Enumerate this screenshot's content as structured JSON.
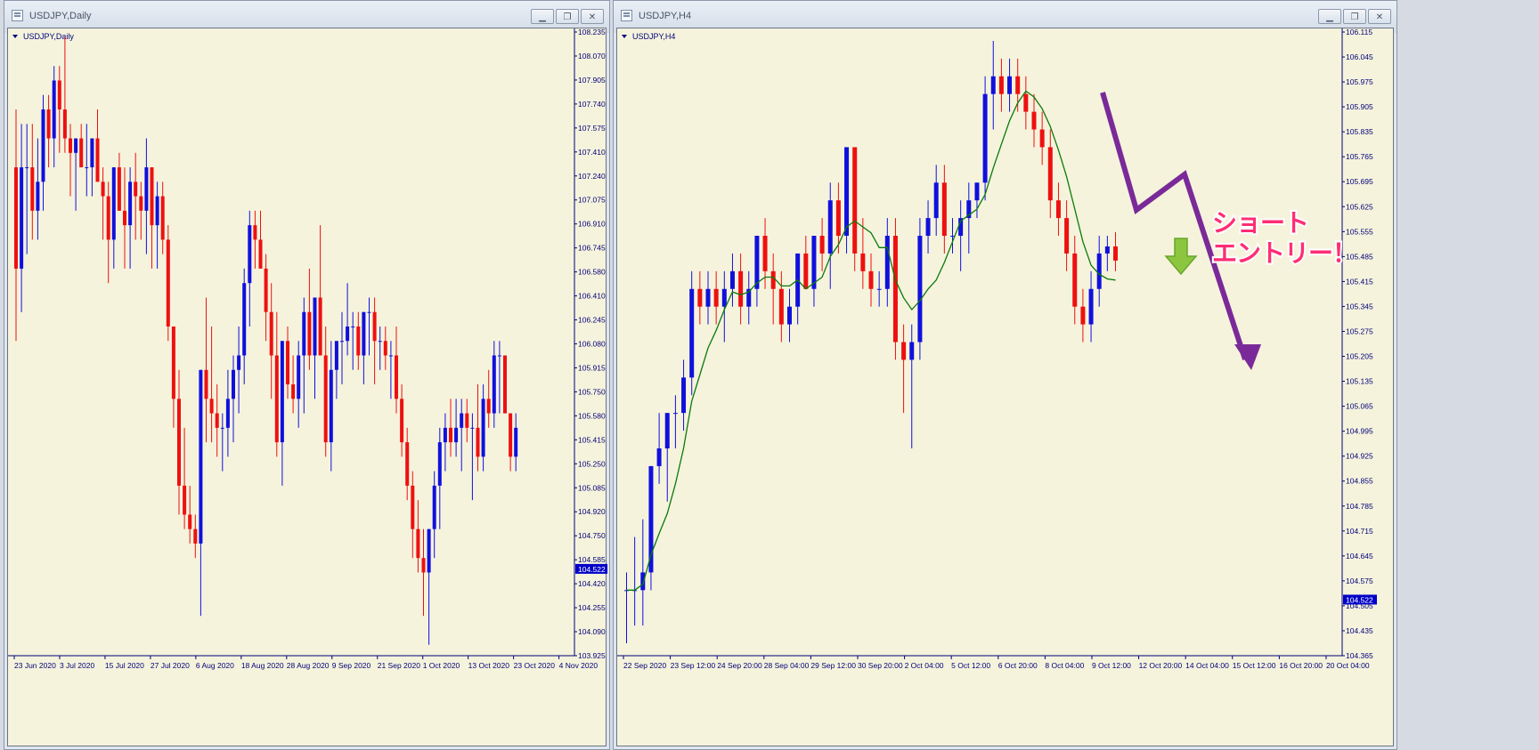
{
  "left_window": {
    "title": "USDJPY,Daily",
    "chart_label": "USDJPY,Daily",
    "buttons": [
      "▁",
      "❐",
      "✕"
    ]
  },
  "right_window": {
    "title": "USDJPY,H4",
    "chart_label": "USDJPY,H4",
    "buttons": [
      "▁",
      "❐",
      "✕"
    ]
  },
  "colors": {
    "chart_bg": "#f5f3dc",
    "bull": "#1010dd",
    "bear": "#ee1010",
    "axis_text": "#00007a",
    "ma_line": "#0a7a0a",
    "arrow": "#7a2a98",
    "callout": "#ff2d73",
    "down_arrow": "#7fbf3a",
    "price_tag_bg": "#0000c8"
  },
  "icons": [
    "window-icon",
    "minimize-icon",
    "restore-icon",
    "close-icon",
    "chart-dropdown-icon",
    "down-arrow-icon"
  ],
  "annotation": {
    "line1": "ショート",
    "line2": "エントリー！"
  },
  "chart_data": [
    {
      "type": "candlestick",
      "title": "USDJPY,Daily",
      "current_price": "104.522",
      "ylim": [
        103.925,
        108.235
      ],
      "y_ticks": [
        "108.235",
        "108.070",
        "107.905",
        "107.740",
        "107.575",
        "107.410",
        "107.240",
        "107.075",
        "106.910",
        "106.745",
        "106.580",
        "106.410",
        "106.245",
        "106.080",
        "105.915",
        "105.750",
        "105.580",
        "105.415",
        "105.250",
        "105.085",
        "104.920",
        "104.750",
        "104.585",
        "104.420",
        "104.255",
        "104.090",
        "103.925"
      ],
      "x_ticks": [
        "23 Jun 2020",
        "3 Jul 2020",
        "15 Jul 2020",
        "27 Jul 2020",
        "6 Aug 2020",
        "18 Aug 2020",
        "28 Aug 2020",
        "9 Sep 2020",
        "21 Sep 2020",
        "1 Oct 2020",
        "13 Oct 2020",
        "23 Oct 2020",
        "4 Nov 2020"
      ],
      "candles": [
        [
          107.3,
          107.7,
          106.1,
          106.6
        ],
        [
          106.6,
          107.6,
          106.3,
          107.3
        ],
        [
          107.3,
          107.6,
          106.7,
          107.3
        ],
        [
          107.3,
          107.6,
          106.8,
          107.0
        ],
        [
          107.0,
          107.5,
          106.8,
          107.2
        ],
        [
          107.2,
          107.8,
          107.0,
          107.7
        ],
        [
          107.7,
          107.8,
          107.3,
          107.5
        ],
        [
          107.5,
          108.0,
          107.3,
          107.9
        ],
        [
          107.9,
          108.0,
          107.4,
          107.7
        ],
        [
          107.7,
          108.2,
          107.4,
          107.5
        ],
        [
          107.5,
          107.6,
          107.1,
          107.4
        ],
        [
          107.4,
          107.5,
          107.0,
          107.5
        ],
        [
          107.5,
          107.6,
          107.3,
          107.3
        ],
        [
          107.3,
          107.6,
          107.1,
          107.3
        ],
        [
          107.3,
          107.5,
          107.1,
          107.5
        ],
        [
          107.5,
          107.7,
          107.2,
          107.2
        ],
        [
          107.2,
          107.3,
          106.8,
          107.1
        ],
        [
          107.1,
          107.2,
          106.5,
          106.8
        ],
        [
          106.8,
          107.3,
          106.6,
          107.3
        ],
        [
          107.3,
          107.4,
          107.0,
          107.0
        ],
        [
          107.0,
          107.3,
          106.6,
          106.9
        ],
        [
          106.9,
          107.3,
          106.6,
          107.2
        ],
        [
          107.2,
          107.4,
          106.8,
          107.1
        ],
        [
          107.1,
          107.2,
          106.8,
          107.0
        ],
        [
          107.0,
          107.5,
          106.7,
          107.3
        ],
        [
          107.3,
          107.3,
          106.6,
          106.9
        ],
        [
          106.9,
          107.2,
          106.6,
          107.1
        ],
        [
          107.1,
          107.2,
          106.7,
          106.8
        ],
        [
          106.8,
          106.9,
          106.1,
          106.2
        ],
        [
          106.2,
          106.2,
          105.5,
          105.7
        ],
        [
          105.7,
          105.9,
          104.9,
          105.1
        ],
        [
          105.1,
          105.5,
          104.8,
          104.9
        ],
        [
          104.9,
          105.1,
          104.7,
          104.8
        ],
        [
          104.8,
          104.9,
          104.6,
          104.7
        ],
        [
          104.7,
          105.9,
          104.2,
          105.9
        ],
        [
          105.9,
          106.4,
          105.4,
          105.7
        ],
        [
          105.7,
          106.2,
          105.4,
          105.6
        ],
        [
          105.6,
          105.8,
          105.3,
          105.5
        ],
        [
          105.5,
          105.6,
          105.2,
          105.5
        ],
        [
          105.5,
          105.9,
          105.3,
          105.7
        ],
        [
          105.7,
          106.0,
          105.4,
          105.9
        ],
        [
          105.9,
          106.2,
          105.6,
          106.0
        ],
        [
          106.0,
          106.6,
          105.8,
          106.5
        ],
        [
          106.5,
          107.0,
          106.2,
          106.9
        ],
        [
          106.9,
          107.0,
          106.6,
          106.8
        ],
        [
          106.8,
          107.0,
          106.6,
          106.6
        ],
        [
          106.6,
          106.7,
          106.1,
          106.3
        ],
        [
          106.3,
          106.5,
          105.7,
          106.0
        ],
        [
          106.0,
          106.3,
          105.3,
          105.4
        ],
        [
          105.4,
          106.1,
          105.1,
          106.1
        ],
        [
          106.1,
          106.2,
          105.7,
          105.8
        ],
        [
          105.8,
          106.0,
          105.6,
          105.7
        ],
        [
          105.7,
          106.1,
          105.5,
          106.0
        ],
        [
          106.0,
          106.4,
          105.6,
          106.3
        ],
        [
          106.3,
          106.6,
          105.9,
          106.0
        ],
        [
          106.0,
          106.4,
          105.7,
          106.4
        ],
        [
          106.4,
          106.9,
          106.0,
          106.0
        ],
        [
          106.0,
          106.2,
          105.3,
          105.4
        ],
        [
          105.4,
          106.1,
          105.2,
          105.9
        ],
        [
          105.9,
          106.1,
          105.7,
          106.1
        ],
        [
          106.1,
          106.3,
          105.8,
          106.1
        ],
        [
          106.1,
          106.5,
          106.0,
          106.2
        ],
        [
          106.2,
          106.3,
          105.9,
          106.2
        ],
        [
          106.2,
          106.3,
          105.9,
          106.0
        ],
        [
          106.0,
          106.3,
          105.8,
          106.3
        ],
        [
          106.3,
          106.4,
          106.0,
          106.3
        ],
        [
          106.3,
          106.4,
          105.8,
          106.1
        ],
        [
          106.1,
          106.2,
          105.9,
          106.1
        ],
        [
          106.1,
          106.2,
          105.9,
          106.0
        ],
        [
          106.0,
          106.1,
          105.7,
          106.0
        ],
        [
          106.0,
          106.2,
          105.6,
          105.7
        ],
        [
          105.7,
          105.8,
          105.3,
          105.4
        ],
        [
          105.4,
          105.5,
          105.0,
          105.1
        ],
        [
          105.1,
          105.2,
          104.6,
          104.8
        ],
        [
          104.8,
          105.0,
          104.5,
          104.6
        ],
        [
          104.6,
          104.8,
          104.2,
          104.5
        ],
        [
          104.5,
          104.8,
          104.0,
          104.8
        ],
        [
          104.8,
          105.2,
          104.6,
          105.1
        ],
        [
          105.1,
          105.5,
          104.8,
          105.4
        ],
        [
          105.4,
          105.6,
          105.2,
          105.5
        ],
        [
          105.5,
          105.7,
          105.3,
          105.4
        ],
        [
          105.4,
          105.7,
          105.3,
          105.5
        ],
        [
          105.5,
          105.7,
          105.2,
          105.6
        ],
        [
          105.6,
          105.7,
          105.4,
          105.5
        ],
        [
          105.5,
          105.6,
          105.0,
          105.5
        ],
        [
          105.5,
          105.8,
          105.2,
          105.3
        ],
        [
          105.3,
          105.8,
          105.2,
          105.7
        ],
        [
          105.7,
          105.9,
          105.5,
          105.6
        ],
        [
          105.6,
          106.1,
          105.5,
          106.0
        ],
        [
          106.0,
          106.1,
          105.6,
          106.0
        ],
        [
          106.0,
          106.0,
          105.6,
          105.6
        ],
        [
          105.6,
          105.6,
          105.2,
          105.3
        ],
        [
          105.3,
          105.6,
          105.2,
          105.5
        ]
      ]
    },
    {
      "type": "candlestick",
      "title": "USDJPY,H4",
      "current_price": "104.522",
      "ylim": [
        104.365,
        106.125
      ],
      "y_ticks": [
        "106.115",
        "106.045",
        "105.975",
        "105.905",
        "105.835",
        "105.765",
        "105.695",
        "105.625",
        "105.555",
        "105.485",
        "105.415",
        "105.345",
        "105.275",
        "105.205",
        "105.135",
        "105.065",
        "104.995",
        "104.925",
        "104.855",
        "104.785",
        "104.715",
        "104.645",
        "104.575",
        "104.505",
        "104.435",
        "104.365"
      ],
      "x_ticks": [
        "22 Sep 2020",
        "23 Sep 12:00",
        "24 Sep 20:00",
        "28 Sep 04:00",
        "29 Sep 12:00",
        "30 Sep 20:00",
        "2 Oct 04:00",
        "5 Oct 12:00",
        "6 Oct 20:00",
        "8 Oct 04:00",
        "9 Oct 12:00",
        "12 Oct 20:00",
        "14 Oct 04:00",
        "15 Oct 12:00",
        "16 Oct 20:00",
        "20 Oct 04:00"
      ],
      "candles": [
        [
          104.55,
          104.6,
          104.4,
          104.55
        ],
        [
          104.55,
          104.7,
          104.45,
          104.55
        ],
        [
          104.55,
          104.75,
          104.45,
          104.6
        ],
        [
          104.6,
          104.9,
          104.55,
          104.9
        ],
        [
          104.9,
          105.05,
          104.85,
          104.95
        ],
        [
          104.95,
          105.05,
          104.8,
          105.05
        ],
        [
          105.05,
          105.1,
          104.95,
          105.05
        ],
        [
          105.05,
          105.2,
          105.0,
          105.15
        ],
        [
          105.15,
          105.45,
          105.1,
          105.4
        ],
        [
          105.4,
          105.45,
          105.3,
          105.35
        ],
        [
          105.35,
          105.45,
          105.3,
          105.4
        ],
        [
          105.4,
          105.45,
          105.3,
          105.35
        ],
        [
          105.35,
          105.45,
          105.25,
          105.4
        ],
        [
          105.4,
          105.5,
          105.35,
          105.45
        ],
        [
          105.45,
          105.5,
          105.3,
          105.35
        ],
        [
          105.35,
          105.45,
          105.3,
          105.4
        ],
        [
          105.4,
          105.55,
          105.35,
          105.55
        ],
        [
          105.55,
          105.6,
          105.4,
          105.45
        ],
        [
          105.45,
          105.5,
          105.3,
          105.4
        ],
        [
          105.4,
          105.45,
          105.25,
          105.3
        ],
        [
          105.3,
          105.4,
          105.25,
          105.35
        ],
        [
          105.35,
          105.5,
          105.3,
          105.5
        ],
        [
          105.5,
          105.55,
          105.4,
          105.4
        ],
        [
          105.4,
          105.55,
          105.35,
          105.55
        ],
        [
          105.55,
          105.6,
          105.45,
          105.5
        ],
        [
          105.5,
          105.7,
          105.4,
          105.65
        ],
        [
          105.65,
          105.7,
          105.5,
          105.55
        ],
        [
          105.55,
          105.8,
          105.5,
          105.8
        ],
        [
          105.8,
          105.8,
          105.45,
          105.5
        ],
        [
          105.5,
          105.6,
          105.4,
          105.45
        ],
        [
          105.45,
          105.5,
          105.35,
          105.4
        ],
        [
          105.4,
          105.45,
          105.35,
          105.4
        ],
        [
          105.4,
          105.6,
          105.35,
          105.55
        ],
        [
          105.55,
          105.6,
          105.2,
          105.25
        ],
        [
          105.25,
          105.3,
          105.05,
          105.2
        ],
        [
          105.2,
          105.3,
          104.95,
          105.25
        ],
        [
          105.25,
          105.6,
          105.2,
          105.55
        ],
        [
          105.55,
          105.65,
          105.5,
          105.6
        ],
        [
          105.6,
          105.75,
          105.55,
          105.7
        ],
        [
          105.7,
          105.75,
          105.5,
          105.55
        ],
        [
          105.55,
          105.6,
          105.5,
          105.55
        ],
        [
          105.55,
          105.65,
          105.45,
          105.6
        ],
        [
          105.6,
          105.7,
          105.5,
          105.65
        ],
        [
          105.65,
          105.7,
          105.6,
          105.7
        ],
        [
          105.7,
          106.0,
          105.65,
          105.95
        ],
        [
          105.95,
          106.1,
          105.85,
          106.0
        ],
        [
          106.0,
          106.05,
          105.9,
          105.95
        ],
        [
          105.95,
          106.05,
          105.9,
          106.0
        ],
        [
          106.0,
          106.05,
          105.9,
          105.95
        ],
        [
          105.95,
          106.0,
          105.85,
          105.9
        ],
        [
          105.9,
          105.95,
          105.8,
          105.85
        ],
        [
          105.85,
          105.9,
          105.75,
          105.8
        ],
        [
          105.8,
          105.85,
          105.6,
          105.65
        ],
        [
          105.65,
          105.7,
          105.55,
          105.6
        ],
        [
          105.6,
          105.65,
          105.45,
          105.5
        ],
        [
          105.5,
          105.55,
          105.3,
          105.35
        ],
        [
          105.35,
          105.4,
          105.25,
          105.3
        ],
        [
          105.3,
          105.45,
          105.25,
          105.4
        ],
        [
          105.4,
          105.55,
          105.35,
          105.5
        ],
        [
          105.5,
          105.55,
          105.45,
          105.52
        ],
        [
          105.52,
          105.56,
          105.45,
          105.48
        ]
      ]
    }
  ]
}
